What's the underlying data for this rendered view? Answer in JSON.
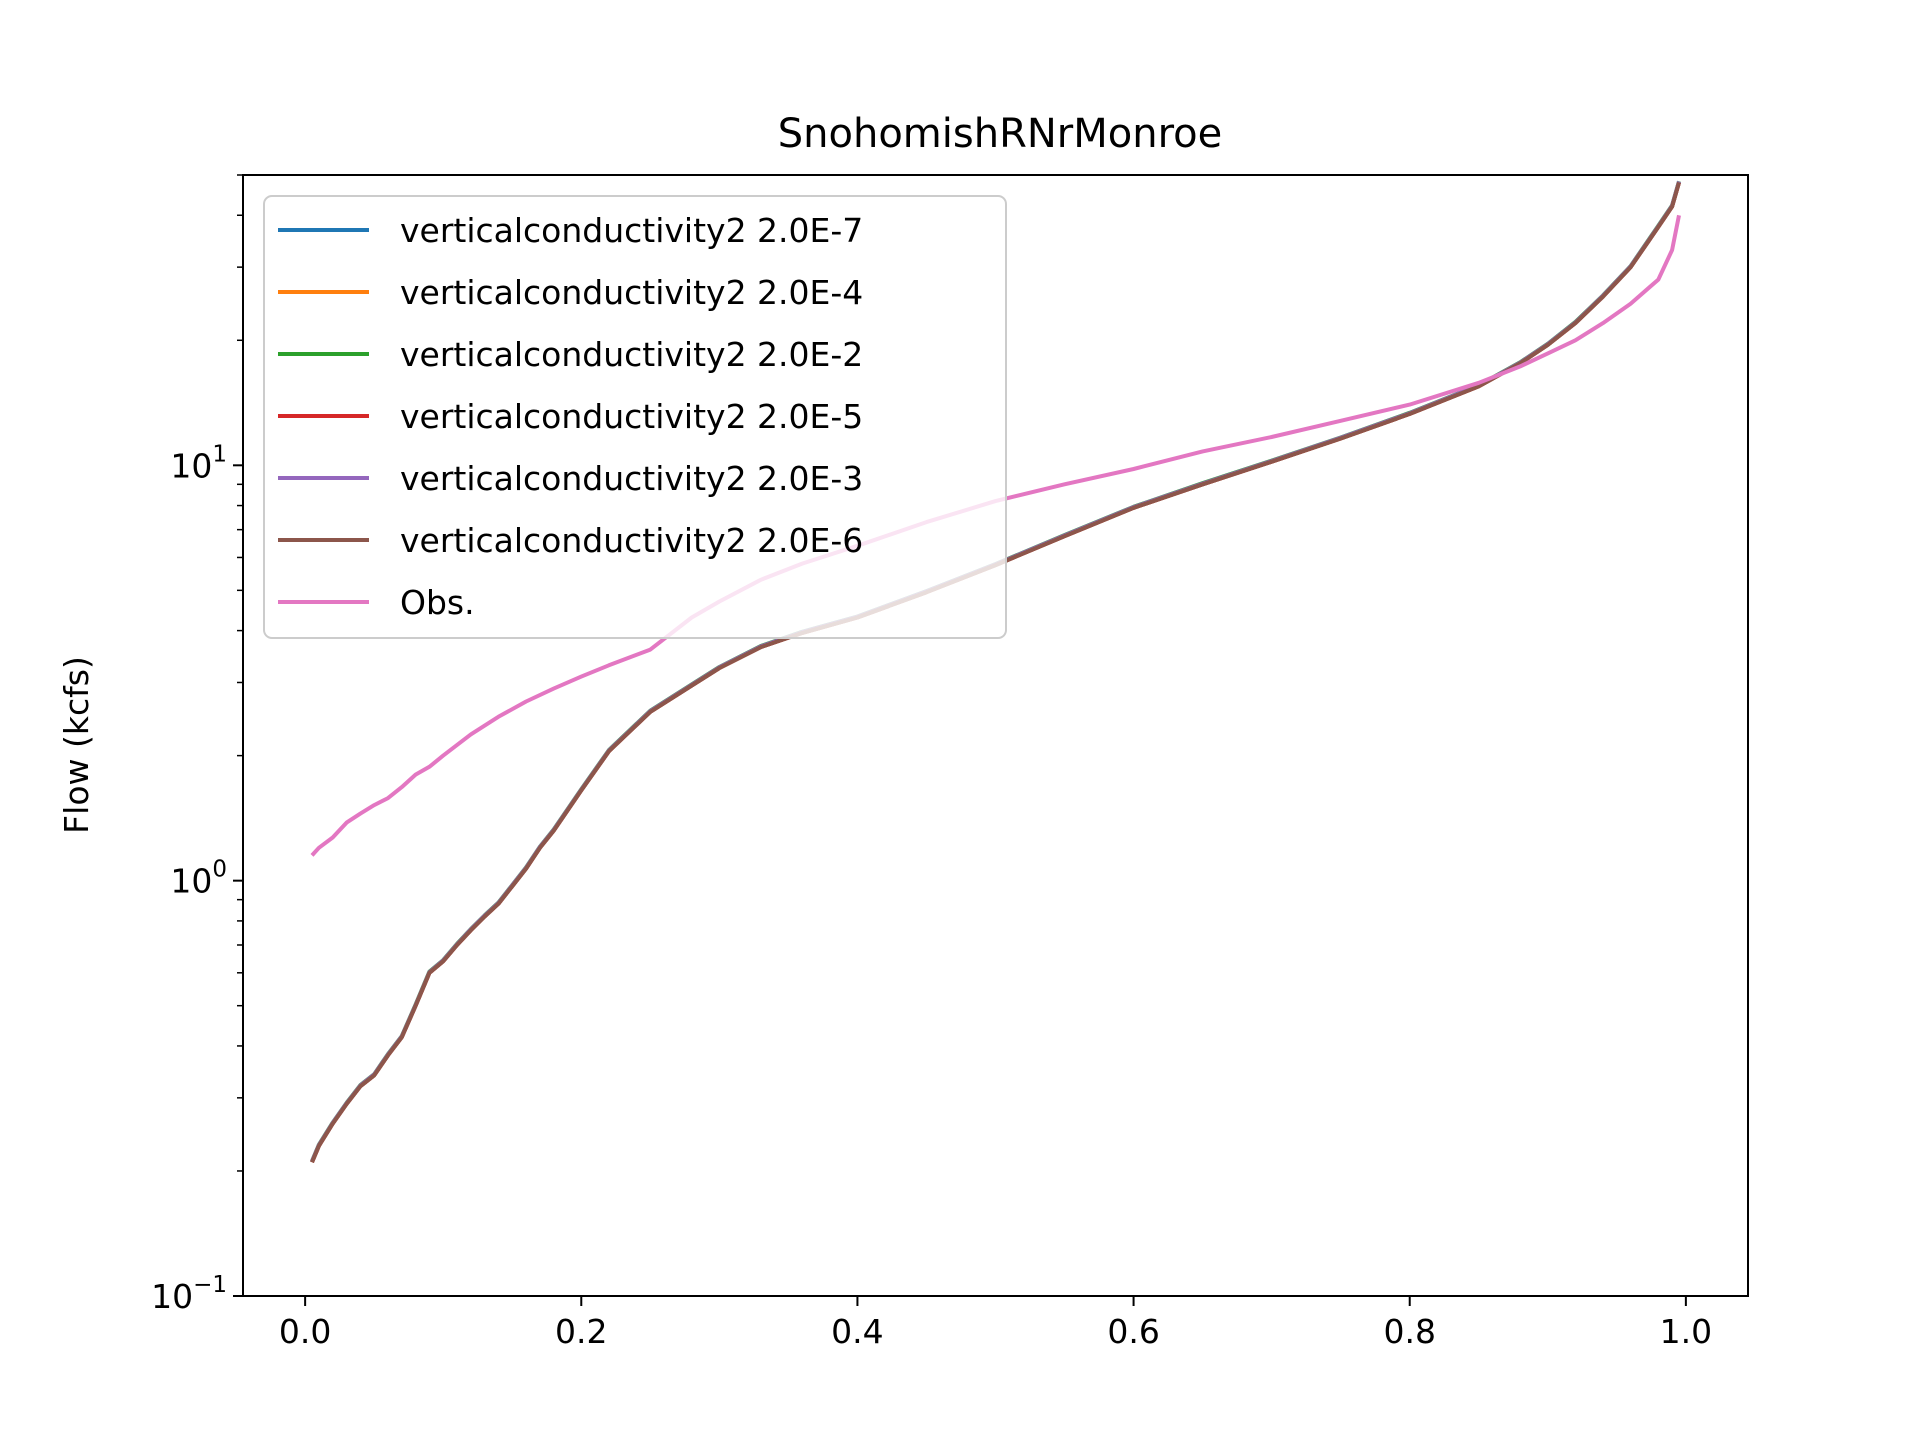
{
  "chart_data": {
    "type": "line",
    "title": "SnohomishRNrMonroe",
    "xlabel": "",
    "ylabel": "Flow (kcfs)",
    "xlim": [
      -0.045,
      1.045
    ],
    "ylim": [
      0.1,
      50
    ],
    "yscale": "log",
    "grid": false,
    "legend_position": "top-left",
    "x_ticks": [
      0.0,
      0.2,
      0.4,
      0.6,
      0.8,
      1.0
    ],
    "x_tick_labels": [
      "0.0",
      "0.2",
      "0.4",
      "0.6",
      "0.8",
      "1.0"
    ],
    "y_ticks": [
      0.1,
      1,
      10
    ],
    "y_tick_labels": [
      {
        "base": "10",
        "exp": "−1"
      },
      {
        "base": "10",
        "exp": "0"
      },
      {
        "base": "10",
        "exp": "1"
      }
    ],
    "sim_x": [
      0.005,
      0.01,
      0.02,
      0.03,
      0.04,
      0.05,
      0.06,
      0.07,
      0.08,
      0.09,
      0.1,
      0.11,
      0.12,
      0.13,
      0.14,
      0.15,
      0.16,
      0.17,
      0.18,
      0.2,
      0.22,
      0.25,
      0.28,
      0.3,
      0.33,
      0.36,
      0.4,
      0.45,
      0.5,
      0.55,
      0.6,
      0.65,
      0.7,
      0.75,
      0.8,
      0.85,
      0.88,
      0.9,
      0.92,
      0.94,
      0.96,
      0.98,
      0.99,
      0.995
    ],
    "sim_y": [
      0.21,
      0.23,
      0.26,
      0.29,
      0.32,
      0.34,
      0.38,
      0.42,
      0.5,
      0.6,
      0.64,
      0.7,
      0.76,
      0.82,
      0.88,
      0.97,
      1.07,
      1.2,
      1.32,
      1.65,
      2.05,
      2.55,
      2.95,
      3.25,
      3.65,
      3.95,
      4.3,
      4.95,
      5.75,
      6.75,
      7.9,
      9.0,
      10.2,
      11.6,
      13.3,
      15.5,
      17.6,
      19.5,
      22.0,
      25.5,
      30.0,
      37.5,
      42.0,
      48.0
    ],
    "series": [
      {
        "name": "verticalconductivity2 2.0E-7",
        "color": "#1f77b4",
        "factors": [
          1.0
        ]
      },
      {
        "name": "verticalconductivity2 2.0E-4",
        "color": "#ff7f0e",
        "factors": [
          1.0
        ]
      },
      {
        "name": "verticalconductivity2 2.0E-2",
        "color": "#2ca02c",
        "factors": [
          1.006
        ]
      },
      {
        "name": "verticalconductivity2 2.0E-5",
        "color": "#d62728",
        "factors": [
          1.0
        ]
      },
      {
        "name": "verticalconductivity2 2.0E-3",
        "color": "#9467bd",
        "factors": [
          1.004
        ]
      },
      {
        "name": "verticalconductivity2 2.0E-6",
        "color": "#8c564b",
        "factors": [
          1.0
        ]
      },
      {
        "name": "Obs.",
        "color": "#e377c2",
        "x": [
          0.005,
          0.01,
          0.02,
          0.03,
          0.04,
          0.05,
          0.06,
          0.07,
          0.08,
          0.09,
          0.1,
          0.12,
          0.14,
          0.16,
          0.18,
          0.2,
          0.22,
          0.25,
          0.28,
          0.3,
          0.33,
          0.36,
          0.4,
          0.45,
          0.5,
          0.55,
          0.6,
          0.65,
          0.7,
          0.75,
          0.8,
          0.85,
          0.88,
          0.9,
          0.92,
          0.94,
          0.96,
          0.98,
          0.99,
          0.995
        ],
        "y": [
          1.15,
          1.2,
          1.27,
          1.38,
          1.45,
          1.52,
          1.58,
          1.68,
          1.8,
          1.88,
          2.0,
          2.25,
          2.48,
          2.7,
          2.9,
          3.1,
          3.3,
          3.6,
          4.3,
          4.7,
          5.3,
          5.8,
          6.4,
          7.3,
          8.2,
          9.0,
          9.8,
          10.8,
          11.7,
          12.8,
          14.0,
          15.8,
          17.3,
          18.6,
          20.0,
          22.0,
          24.5,
          28.0,
          33.0,
          40.0
        ]
      }
    ]
  }
}
